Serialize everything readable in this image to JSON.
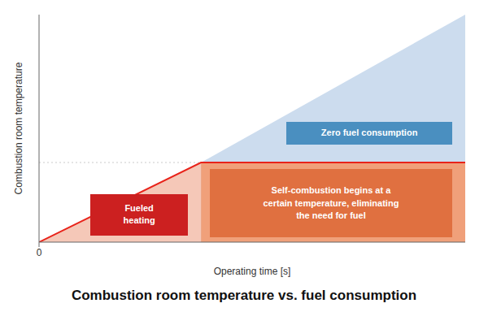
{
  "chart_data": {
    "type": "area",
    "title": "Combustion room temperature vs. fuel consumption",
    "xlabel": "Operating time [s]",
    "ylabel": "Combustion room temperature",
    "x": [
      0,
      3.8,
      10
    ],
    "series": [
      {
        "type": "area",
        "color": "#ccdcee",
        "values": [
          null,
          3.5,
          10.0
        ]
      },
      {
        "type": "area",
        "color": "#f5c8b8",
        "values": [
          0,
          3.5,
          null
        ]
      },
      {
        "type": "area",
        "color": "#f0a07a",
        "values": [
          null,
          3.5,
          3.5
        ]
      },
      {
        "type": "line",
        "color": "#cccccc",
        "line_style": "dotted",
        "values": [
          3.5,
          3.5,
          null
        ]
      },
      {
        "type": "line",
        "color": "#e8231a",
        "line_style": "solid",
        "values": [
          0,
          3.5,
          3.5
        ]
      }
    ],
    "xlim": [
      0,
      10
    ],
    "ylim": [
      0,
      10
    ],
    "xticks": [
      0
    ],
    "yticks": [],
    "tick_labels": "x",
    "grid": false,
    "annotations": [
      {
        "text": "Fueled\nheating",
        "color": "#cc2020"
      },
      {
        "text": "Zero fuel consumption",
        "color": "#4a8fc0"
      },
      {
        "text": "Self-combustion begins at a\ncertain temperature, eliminating\nthe need for fuel",
        "color": "#e07040"
      }
    ]
  }
}
